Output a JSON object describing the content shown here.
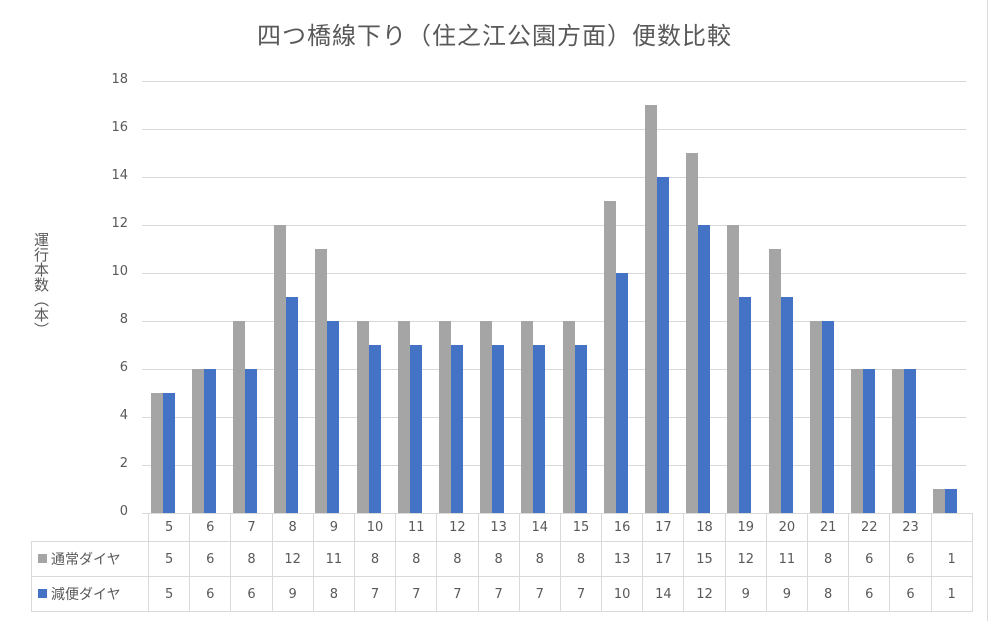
{
  "chart_data": {
    "type": "bar",
    "title": "四つ橋線下り（住之江公園方面）便数比較",
    "xlabel": "",
    "ylabel": "運行本数（本）",
    "ylim": [
      0,
      18
    ],
    "yticks": [
      0,
      2,
      4,
      6,
      8,
      10,
      12,
      14,
      16,
      18
    ],
    "grid": true,
    "legend_position": "data-table",
    "categories": [
      "5",
      "6",
      "7",
      "8",
      "9",
      "10",
      "11",
      "12",
      "13",
      "14",
      "15",
      "16",
      "17",
      "18",
      "19",
      "20",
      "21",
      "22",
      "23",
      ""
    ],
    "series": [
      {
        "name": "通常ダイヤ",
        "color": "#a5a5a5",
        "values": [
          5,
          6,
          8,
          12,
          11,
          8,
          8,
          8,
          8,
          8,
          8,
          13,
          17,
          15,
          12,
          11,
          8,
          6,
          6,
          1
        ]
      },
      {
        "name": "減便ダイヤ",
        "color": "#4472c4",
        "values": [
          5,
          6,
          6,
          9,
          8,
          7,
          7,
          7,
          7,
          7,
          7,
          10,
          14,
          12,
          9,
          9,
          8,
          6,
          6,
          1
        ]
      }
    ]
  }
}
